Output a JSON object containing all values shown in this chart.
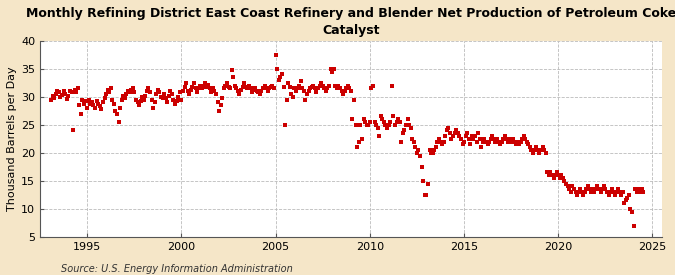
{
  "title": "Monthly Refining District East Coast Refinery and Blender Net Production of Petroleum Coke\nCatalyst",
  "ylabel": "Thousand Barrels per Day",
  "source": "Source: U.S. Energy Information Administration",
  "outer_bg": "#f5e6c8",
  "plot_bg_color": "#ffffff",
  "marker_color": "#cc0000",
  "marker_size": 5,
  "ylim": [
    5,
    40
  ],
  "yticks": [
    5,
    10,
    15,
    20,
    25,
    30,
    35,
    40
  ],
  "xlim_start": 1992.5,
  "xlim_end": 2025.5,
  "xticks": [
    1995,
    2000,
    2005,
    2010,
    2015,
    2020,
    2025
  ],
  "title_fontsize": 9,
  "tick_fontsize": 8,
  "ylabel_fontsize": 8,
  "source_fontsize": 7,
  "data": [
    [
      1993.08,
      29.5
    ],
    [
      1993.17,
      30.2
    ],
    [
      1993.25,
      29.8
    ],
    [
      1993.33,
      30.5
    ],
    [
      1993.42,
      31.1
    ],
    [
      1993.5,
      30.8
    ],
    [
      1993.58,
      29.9
    ],
    [
      1993.67,
      30.3
    ],
    [
      1993.75,
      31.0
    ],
    [
      1993.83,
      30.5
    ],
    [
      1993.92,
      29.7
    ],
    [
      1994.0,
      30.2
    ],
    [
      1994.08,
      31.1
    ],
    [
      1994.17,
      30.8
    ],
    [
      1994.25,
      24.0
    ],
    [
      1994.33,
      31.2
    ],
    [
      1994.42,
      30.9
    ],
    [
      1994.5,
      31.5
    ],
    [
      1994.58,
      28.5
    ],
    [
      1994.67,
      27.0
    ],
    [
      1994.75,
      29.5
    ],
    [
      1994.83,
      28.8
    ],
    [
      1994.92,
      29.3
    ],
    [
      1995.0,
      28.0
    ],
    [
      1995.08,
      29.5
    ],
    [
      1995.17,
      28.8
    ],
    [
      1995.25,
      29.0
    ],
    [
      1995.33,
      28.5
    ],
    [
      1995.42,
      28.0
    ],
    [
      1995.5,
      29.2
    ],
    [
      1995.58,
      28.7
    ],
    [
      1995.67,
      28.3
    ],
    [
      1995.75,
      27.9
    ],
    [
      1995.83,
      29.0
    ],
    [
      1995.92,
      29.8
    ],
    [
      1996.0,
      30.5
    ],
    [
      1996.08,
      31.2
    ],
    [
      1996.17,
      30.8
    ],
    [
      1996.25,
      31.5
    ],
    [
      1996.33,
      29.5
    ],
    [
      1996.42,
      28.8
    ],
    [
      1996.5,
      27.5
    ],
    [
      1996.58,
      27.0
    ],
    [
      1996.67,
      25.5
    ],
    [
      1996.75,
      28.0
    ],
    [
      1996.83,
      29.5
    ],
    [
      1996.92,
      30.2
    ],
    [
      1997.0,
      29.8
    ],
    [
      1997.08,
      30.5
    ],
    [
      1997.17,
      31.0
    ],
    [
      1997.25,
      30.8
    ],
    [
      1997.33,
      31.2
    ],
    [
      1997.42,
      31.5
    ],
    [
      1997.5,
      30.9
    ],
    [
      1997.58,
      29.5
    ],
    [
      1997.67,
      29.0
    ],
    [
      1997.75,
      28.5
    ],
    [
      1997.83,
      29.2
    ],
    [
      1997.92,
      30.0
    ],
    [
      1998.0,
      29.5
    ],
    [
      1998.08,
      30.2
    ],
    [
      1998.17,
      31.0
    ],
    [
      1998.25,
      31.5
    ],
    [
      1998.33,
      30.8
    ],
    [
      1998.42,
      29.5
    ],
    [
      1998.5,
      28.0
    ],
    [
      1998.58,
      29.0
    ],
    [
      1998.67,
      30.5
    ],
    [
      1998.75,
      31.2
    ],
    [
      1998.83,
      30.8
    ],
    [
      1998.92,
      30.0
    ],
    [
      1999.0,
      29.8
    ],
    [
      1999.08,
      30.5
    ],
    [
      1999.17,
      29.8
    ],
    [
      1999.25,
      29.0
    ],
    [
      1999.33,
      30.2
    ],
    [
      1999.42,
      31.0
    ],
    [
      1999.5,
      30.5
    ],
    [
      1999.58,
      29.5
    ],
    [
      1999.67,
      28.8
    ],
    [
      1999.75,
      29.3
    ],
    [
      1999.83,
      30.0
    ],
    [
      1999.92,
      30.8
    ],
    [
      2000.0,
      29.5
    ],
    [
      2000.08,
      31.0
    ],
    [
      2000.17,
      31.8
    ],
    [
      2000.25,
      32.5
    ],
    [
      2000.33,
      31.0
    ],
    [
      2000.42,
      30.5
    ],
    [
      2000.5,
      31.2
    ],
    [
      2000.58,
      31.8
    ],
    [
      2000.67,
      32.5
    ],
    [
      2000.75,
      31.5
    ],
    [
      2000.83,
      30.8
    ],
    [
      2000.92,
      31.5
    ],
    [
      2001.0,
      32.0
    ],
    [
      2001.08,
      31.5
    ],
    [
      2001.17,
      32.0
    ],
    [
      2001.25,
      32.5
    ],
    [
      2001.33,
      31.8
    ],
    [
      2001.42,
      32.2
    ],
    [
      2001.5,
      31.5
    ],
    [
      2001.58,
      30.8
    ],
    [
      2001.67,
      31.5
    ],
    [
      2001.75,
      31.0
    ],
    [
      2001.83,
      30.5
    ],
    [
      2001.92,
      29.0
    ],
    [
      2002.0,
      27.5
    ],
    [
      2002.08,
      28.5
    ],
    [
      2002.17,
      29.8
    ],
    [
      2002.25,
      31.5
    ],
    [
      2002.33,
      32.0
    ],
    [
      2002.42,
      32.5
    ],
    [
      2002.5,
      31.8
    ],
    [
      2002.58,
      31.5
    ],
    [
      2002.67,
      34.8
    ],
    [
      2002.75,
      33.5
    ],
    [
      2002.83,
      32.0
    ],
    [
      2002.92,
      31.5
    ],
    [
      2003.0,
      31.0
    ],
    [
      2003.08,
      30.5
    ],
    [
      2003.17,
      31.2
    ],
    [
      2003.25,
      31.8
    ],
    [
      2003.33,
      32.5
    ],
    [
      2003.42,
      31.8
    ],
    [
      2003.5,
      31.5
    ],
    [
      2003.58,
      32.0
    ],
    [
      2003.67,
      31.5
    ],
    [
      2003.75,
      30.8
    ],
    [
      2003.83,
      31.2
    ],
    [
      2003.92,
      31.5
    ],
    [
      2004.0,
      31.0
    ],
    [
      2004.08,
      30.8
    ],
    [
      2004.17,
      30.5
    ],
    [
      2004.25,
      31.0
    ],
    [
      2004.33,
      31.5
    ],
    [
      2004.42,
      32.0
    ],
    [
      2004.5,
      31.5
    ],
    [
      2004.58,
      31.0
    ],
    [
      2004.67,
      31.5
    ],
    [
      2004.75,
      31.8
    ],
    [
      2004.83,
      32.0
    ],
    [
      2004.92,
      31.5
    ],
    [
      2005.0,
      37.5
    ],
    [
      2005.08,
      35.0
    ],
    [
      2005.17,
      33.0
    ],
    [
      2005.25,
      33.5
    ],
    [
      2005.33,
      34.0
    ],
    [
      2005.42,
      31.8
    ],
    [
      2005.5,
      25.0
    ],
    [
      2005.58,
      29.5
    ],
    [
      2005.67,
      32.5
    ],
    [
      2005.75,
      31.8
    ],
    [
      2005.83,
      30.5
    ],
    [
      2005.92,
      30.0
    ],
    [
      2006.0,
      31.5
    ],
    [
      2006.08,
      31.0
    ],
    [
      2006.17,
      31.5
    ],
    [
      2006.25,
      32.0
    ],
    [
      2006.33,
      32.8
    ],
    [
      2006.42,
      31.5
    ],
    [
      2006.5,
      31.0
    ],
    [
      2006.58,
      29.5
    ],
    [
      2006.67,
      30.5
    ],
    [
      2006.75,
      31.0
    ],
    [
      2006.83,
      31.5
    ],
    [
      2006.92,
      31.8
    ],
    [
      2007.0,
      32.0
    ],
    [
      2007.08,
      31.5
    ],
    [
      2007.17,
      30.8
    ],
    [
      2007.25,
      31.5
    ],
    [
      2007.33,
      32.0
    ],
    [
      2007.42,
      32.5
    ],
    [
      2007.5,
      32.0
    ],
    [
      2007.58,
      31.5
    ],
    [
      2007.67,
      31.0
    ],
    [
      2007.75,
      31.5
    ],
    [
      2007.83,
      32.0
    ],
    [
      2007.92,
      35.0
    ],
    [
      2008.0,
      34.5
    ],
    [
      2008.08,
      35.0
    ],
    [
      2008.17,
      32.0
    ],
    [
      2008.25,
      31.5
    ],
    [
      2008.33,
      32.0
    ],
    [
      2008.42,
      31.5
    ],
    [
      2008.5,
      31.0
    ],
    [
      2008.58,
      30.5
    ],
    [
      2008.67,
      31.0
    ],
    [
      2008.75,
      31.5
    ],
    [
      2008.83,
      32.0
    ],
    [
      2008.92,
      31.5
    ],
    [
      2009.0,
      31.0
    ],
    [
      2009.08,
      26.0
    ],
    [
      2009.17,
      29.5
    ],
    [
      2009.25,
      25.0
    ],
    [
      2009.33,
      21.0
    ],
    [
      2009.42,
      22.0
    ],
    [
      2009.5,
      25.0
    ],
    [
      2009.58,
      22.5
    ],
    [
      2009.67,
      26.0
    ],
    [
      2009.75,
      25.5
    ],
    [
      2009.83,
      25.0
    ],
    [
      2009.92,
      25.0
    ],
    [
      2010.0,
      25.5
    ],
    [
      2010.08,
      31.5
    ],
    [
      2010.17,
      32.0
    ],
    [
      2010.25,
      25.5
    ],
    [
      2010.33,
      25.0
    ],
    [
      2010.42,
      24.5
    ],
    [
      2010.5,
      23.0
    ],
    [
      2010.58,
      26.5
    ],
    [
      2010.67,
      26.0
    ],
    [
      2010.75,
      25.5
    ],
    [
      2010.83,
      25.0
    ],
    [
      2010.92,
      24.5
    ],
    [
      2011.0,
      25.0
    ],
    [
      2011.08,
      25.5
    ],
    [
      2011.17,
      32.0
    ],
    [
      2011.25,
      26.5
    ],
    [
      2011.33,
      25.0
    ],
    [
      2011.42,
      25.5
    ],
    [
      2011.5,
      26.0
    ],
    [
      2011.58,
      25.5
    ],
    [
      2011.67,
      22.0
    ],
    [
      2011.75,
      23.5
    ],
    [
      2011.83,
      24.0
    ],
    [
      2011.92,
      25.0
    ],
    [
      2012.0,
      26.0
    ],
    [
      2012.08,
      25.0
    ],
    [
      2012.17,
      24.5
    ],
    [
      2012.25,
      22.5
    ],
    [
      2012.33,
      22.0
    ],
    [
      2012.42,
      21.0
    ],
    [
      2012.5,
      20.0
    ],
    [
      2012.58,
      20.5
    ],
    [
      2012.67,
      19.5
    ],
    [
      2012.75,
      17.5
    ],
    [
      2012.83,
      15.0
    ],
    [
      2012.92,
      12.5
    ],
    [
      2013.0,
      12.5
    ],
    [
      2013.08,
      14.5
    ],
    [
      2013.17,
      20.5
    ],
    [
      2013.25,
      20.0
    ],
    [
      2013.33,
      20.0
    ],
    [
      2013.42,
      20.5
    ],
    [
      2013.5,
      21.0
    ],
    [
      2013.58,
      22.0
    ],
    [
      2013.67,
      22.5
    ],
    [
      2013.75,
      22.0
    ],
    [
      2013.83,
      21.5
    ],
    [
      2013.92,
      22.0
    ],
    [
      2014.0,
      23.0
    ],
    [
      2014.08,
      24.0
    ],
    [
      2014.17,
      24.5
    ],
    [
      2014.25,
      23.5
    ],
    [
      2014.33,
      22.5
    ],
    [
      2014.42,
      23.0
    ],
    [
      2014.5,
      23.5
    ],
    [
      2014.58,
      24.0
    ],
    [
      2014.67,
      23.5
    ],
    [
      2014.75,
      23.0
    ],
    [
      2014.83,
      22.5
    ],
    [
      2014.92,
      21.5
    ],
    [
      2015.0,
      22.0
    ],
    [
      2015.08,
      23.0
    ],
    [
      2015.17,
      23.5
    ],
    [
      2015.25,
      22.5
    ],
    [
      2015.33,
      21.5
    ],
    [
      2015.42,
      23.0
    ],
    [
      2015.5,
      22.5
    ],
    [
      2015.58,
      23.0
    ],
    [
      2015.67,
      22.0
    ],
    [
      2015.75,
      23.5
    ],
    [
      2015.83,
      22.5
    ],
    [
      2015.92,
      21.0
    ],
    [
      2016.0,
      22.0
    ],
    [
      2016.08,
      22.5
    ],
    [
      2016.17,
      22.0
    ],
    [
      2016.25,
      21.5
    ],
    [
      2016.33,
      22.0
    ],
    [
      2016.42,
      22.5
    ],
    [
      2016.5,
      23.0
    ],
    [
      2016.58,
      22.5
    ],
    [
      2016.67,
      22.0
    ],
    [
      2016.75,
      22.5
    ],
    [
      2016.83,
      22.0
    ],
    [
      2016.92,
      21.5
    ],
    [
      2017.0,
      22.0
    ],
    [
      2017.08,
      22.5
    ],
    [
      2017.17,
      23.0
    ],
    [
      2017.25,
      22.5
    ],
    [
      2017.33,
      22.0
    ],
    [
      2017.42,
      22.5
    ],
    [
      2017.5,
      22.0
    ],
    [
      2017.58,
      22.5
    ],
    [
      2017.67,
      22.0
    ],
    [
      2017.75,
      21.5
    ],
    [
      2017.83,
      22.0
    ],
    [
      2017.92,
      21.5
    ],
    [
      2018.0,
      22.0
    ],
    [
      2018.08,
      22.5
    ],
    [
      2018.17,
      23.0
    ],
    [
      2018.25,
      22.5
    ],
    [
      2018.33,
      22.0
    ],
    [
      2018.42,
      21.5
    ],
    [
      2018.5,
      21.0
    ],
    [
      2018.58,
      20.5
    ],
    [
      2018.67,
      20.0
    ],
    [
      2018.75,
      20.5
    ],
    [
      2018.83,
      21.0
    ],
    [
      2018.92,
      20.5
    ],
    [
      2019.0,
      20.0
    ],
    [
      2019.08,
      20.5
    ],
    [
      2019.17,
      21.0
    ],
    [
      2019.25,
      20.5
    ],
    [
      2019.33,
      20.0
    ],
    [
      2019.42,
      16.5
    ],
    [
      2019.5,
      16.0
    ],
    [
      2019.58,
      16.5
    ],
    [
      2019.67,
      16.0
    ],
    [
      2019.75,
      15.5
    ],
    [
      2019.83,
      16.0
    ],
    [
      2019.92,
      16.5
    ],
    [
      2020.0,
      16.0
    ],
    [
      2020.08,
      15.5
    ],
    [
      2020.17,
      16.0
    ],
    [
      2020.25,
      15.5
    ],
    [
      2020.33,
      15.0
    ],
    [
      2020.42,
      14.5
    ],
    [
      2020.5,
      14.0
    ],
    [
      2020.58,
      13.5
    ],
    [
      2020.67,
      13.0
    ],
    [
      2020.75,
      14.0
    ],
    [
      2020.83,
      13.5
    ],
    [
      2020.92,
      13.0
    ],
    [
      2021.0,
      12.5
    ],
    [
      2021.08,
      13.0
    ],
    [
      2021.17,
      13.5
    ],
    [
      2021.25,
      13.0
    ],
    [
      2021.33,
      12.5
    ],
    [
      2021.42,
      13.0
    ],
    [
      2021.5,
      13.5
    ],
    [
      2021.58,
      14.0
    ],
    [
      2021.67,
      13.5
    ],
    [
      2021.75,
      13.0
    ],
    [
      2021.83,
      13.5
    ],
    [
      2021.92,
      13.0
    ],
    [
      2022.0,
      13.5
    ],
    [
      2022.08,
      14.0
    ],
    [
      2022.17,
      13.5
    ],
    [
      2022.25,
      13.0
    ],
    [
      2022.33,
      13.5
    ],
    [
      2022.42,
      14.0
    ],
    [
      2022.5,
      13.5
    ],
    [
      2022.58,
      13.0
    ],
    [
      2022.67,
      12.5
    ],
    [
      2022.75,
      13.0
    ],
    [
      2022.83,
      13.5
    ],
    [
      2022.92,
      13.0
    ],
    [
      2023.0,
      12.5
    ],
    [
      2023.08,
      13.0
    ],
    [
      2023.17,
      13.5
    ],
    [
      2023.25,
      13.0
    ],
    [
      2023.33,
      12.5
    ],
    [
      2023.42,
      13.0
    ],
    [
      2023.5,
      11.0
    ],
    [
      2023.58,
      11.5
    ],
    [
      2023.67,
      12.0
    ],
    [
      2023.75,
      12.5
    ],
    [
      2023.83,
      10.0
    ],
    [
      2023.92,
      9.5
    ],
    [
      2024.0,
      7.0
    ],
    [
      2024.08,
      13.5
    ],
    [
      2024.17,
      13.0
    ],
    [
      2024.25,
      13.5
    ],
    [
      2024.33,
      13.0
    ],
    [
      2024.42,
      13.5
    ],
    [
      2024.5,
      13.0
    ]
  ]
}
